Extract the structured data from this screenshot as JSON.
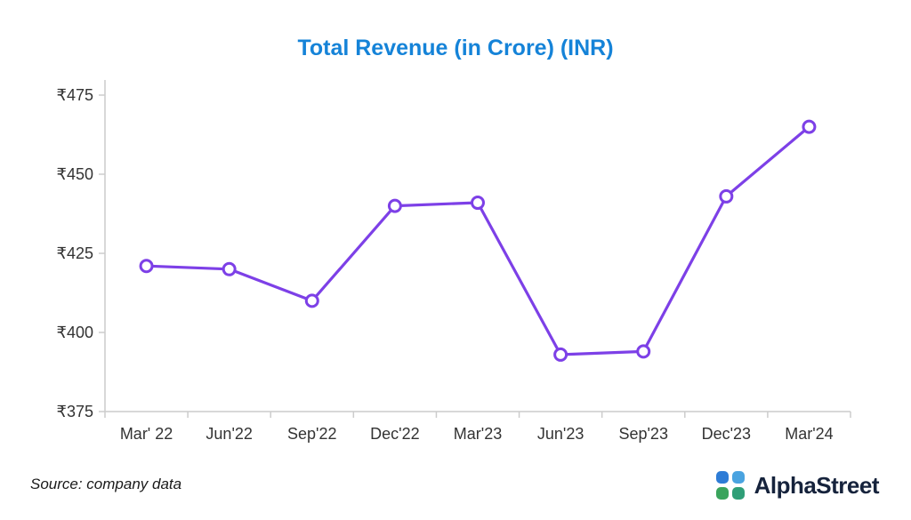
{
  "header": {
    "title": "Total Revenue (in Crore) (INR)"
  },
  "footer": {
    "source": "Source: company data",
    "brand": "AlphaStreet"
  },
  "colors": {
    "title": "#1583d8",
    "line": "#7d40e7",
    "marker_fill": "#ffffff",
    "axis": "#cccccc",
    "tick_text": "#333333"
  },
  "chart_data": {
    "type": "line",
    "title": "Total Revenue (in Crore) (INR)",
    "categories": [
      "Mar' 22",
      "Jun'22",
      "Sep'22",
      "Dec'22",
      "Mar'23",
      "Jun'23",
      "Sep'23",
      "Dec'23",
      "Mar'24"
    ],
    "values": [
      421,
      420,
      410,
      440,
      441,
      393,
      394,
      443,
      465
    ],
    "xlabel": "",
    "ylabel": "",
    "ylim": [
      375,
      475
    ],
    "yticks": [
      {
        "value": 375,
        "label": "₹375"
      },
      {
        "value": 400,
        "label": "₹400"
      },
      {
        "value": 425,
        "label": "₹425"
      },
      {
        "value": 450,
        "label": "₹450"
      },
      {
        "value": 475,
        "label": "₹475"
      }
    ],
    "currency_prefix": "₹",
    "grid": false,
    "legend_position": "none",
    "marker": "circle"
  }
}
